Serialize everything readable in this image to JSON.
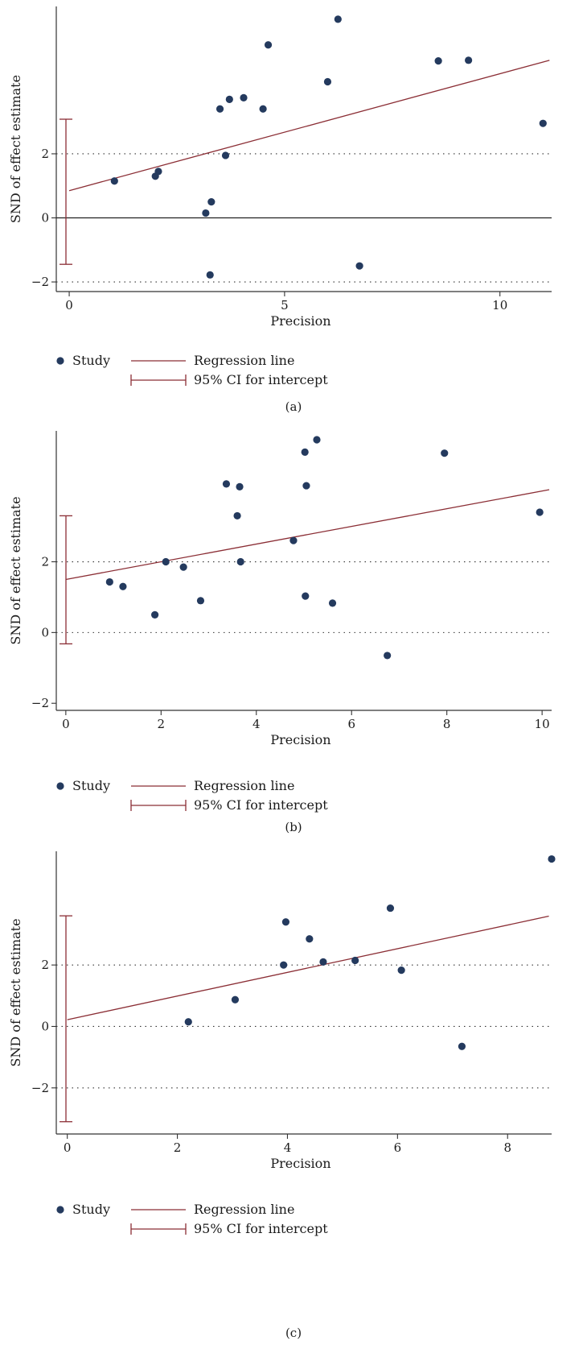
{
  "legend": {
    "study": "Study",
    "regression": "Regression line",
    "ci": "95% CI for intercept"
  },
  "colors": {
    "point": "#243a5e",
    "line": "#8b2e35",
    "axis": "#333333"
  },
  "chart_data": [
    {
      "type": "scatter",
      "panel_label": "(a)",
      "xlabel": "Precision",
      "ylabel": "SND of effect estimate",
      "xlim": [
        -0.3,
        11.2
      ],
      "ylim": [
        -2.3,
        6.6
      ],
      "xticks": [
        0,
        5,
        10
      ],
      "yticks": [
        -2,
        0,
        2
      ],
      "dotted_lines": [
        2,
        -2
      ],
      "solid_zero_line": true,
      "points": [
        [
          1.05,
          1.15
        ],
        [
          2.0,
          1.3
        ],
        [
          2.07,
          1.45
        ],
        [
          3.17,
          0.15
        ],
        [
          3.3,
          0.5
        ],
        [
          3.27,
          -1.78
        ],
        [
          3.63,
          1.95
        ],
        [
          3.5,
          3.4
        ],
        [
          3.72,
          3.7
        ],
        [
          4.05,
          3.75
        ],
        [
          4.5,
          3.4
        ],
        [
          4.62,
          5.4
        ],
        [
          6.0,
          4.25
        ],
        [
          6.24,
          6.2
        ],
        [
          6.74,
          -1.5
        ],
        [
          8.57,
          4.9
        ],
        [
          9.27,
          4.92
        ],
        [
          11.0,
          2.95
        ]
      ],
      "regression": {
        "intercept": 0.85,
        "slope": 0.365
      },
      "ci_intercept": [
        -1.45,
        3.08
      ],
      "legend_position": "bottom-left"
    },
    {
      "type": "scatter",
      "panel_label": "(b)",
      "xlabel": "Precision",
      "ylabel": "SND of effect estimate",
      "xlim": [
        -0.2,
        10.2
      ],
      "ylim": [
        -2.2,
        5.7
      ],
      "xticks": [
        0,
        2,
        4,
        6,
        8,
        10
      ],
      "yticks": [
        -2,
        0,
        2
      ],
      "dotted_lines": [
        2,
        0
      ],
      "solid_zero_line": false,
      "points": [
        [
          0.92,
          1.43
        ],
        [
          1.2,
          1.3
        ],
        [
          1.87,
          0.5
        ],
        [
          2.1,
          2.0
        ],
        [
          2.47,
          1.85
        ],
        [
          2.83,
          0.9
        ],
        [
          3.37,
          4.2
        ],
        [
          3.6,
          3.3
        ],
        [
          3.65,
          4.12
        ],
        [
          3.67,
          2.0
        ],
        [
          4.78,
          2.6
        ],
        [
          5.02,
          5.1
        ],
        [
          5.05,
          4.15
        ],
        [
          5.03,
          1.03
        ],
        [
          5.27,
          5.45
        ],
        [
          5.6,
          0.83
        ],
        [
          6.75,
          -0.65
        ],
        [
          7.95,
          5.07
        ],
        [
          9.95,
          3.4
        ]
      ],
      "regression": {
        "intercept": 1.5,
        "slope": 0.25
      },
      "ci_intercept": [
        -0.32,
        3.3
      ],
      "legend_position": "bottom-left"
    },
    {
      "type": "scatter",
      "panel_label": "(c)",
      "xlabel": "Precision",
      "ylabel": "SND of effect estimate",
      "xlim": [
        -0.2,
        8.8
      ],
      "ylim": [
        -3.5,
        5.7
      ],
      "xticks": [
        0,
        2,
        4,
        6,
        8
      ],
      "yticks": [
        -2,
        0,
        2
      ],
      "dotted_lines": [
        2,
        0,
        -2
      ],
      "solid_zero_line": false,
      "points": [
        [
          2.2,
          0.15
        ],
        [
          3.05,
          0.87
        ],
        [
          3.93,
          2.0
        ],
        [
          3.97,
          3.4
        ],
        [
          4.4,
          2.85
        ],
        [
          4.65,
          2.1
        ],
        [
          5.23,
          2.15
        ],
        [
          5.87,
          3.85
        ],
        [
          6.07,
          1.83
        ],
        [
          7.17,
          -0.65
        ],
        [
          8.8,
          5.45
        ]
      ],
      "regression": {
        "intercept": 0.22,
        "slope": 0.385
      },
      "ci_intercept": [
        -3.1,
        3.6
      ],
      "legend_position": "bottom-left"
    }
  ]
}
